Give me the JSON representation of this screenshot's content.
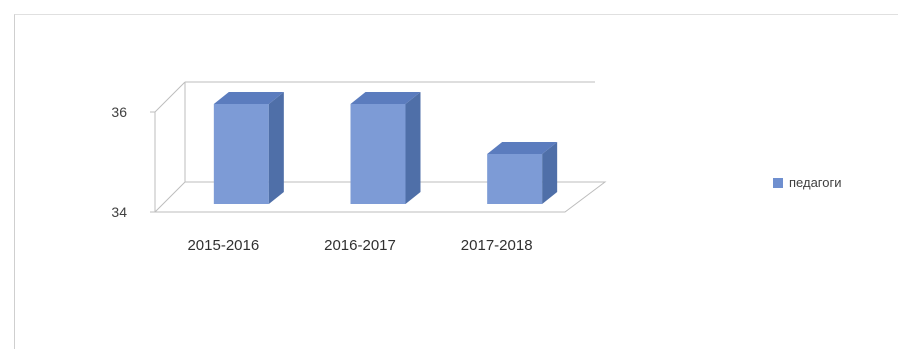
{
  "chart_data": {
    "type": "bar",
    "categories": [
      "2015-2016",
      "2016-2017",
      "2017-2018"
    ],
    "series": [
      {
        "name": "педагоги",
        "values": [
          36,
          36,
          35
        ],
        "color": "#6f8fcf"
      }
    ],
    "ylim": [
      34,
      36
    ],
    "yticks": [
      34,
      36
    ],
    "title": "",
    "xlabel": "",
    "ylabel": "",
    "legend_position": "right",
    "grid": false,
    "style": "3d-columns"
  }
}
